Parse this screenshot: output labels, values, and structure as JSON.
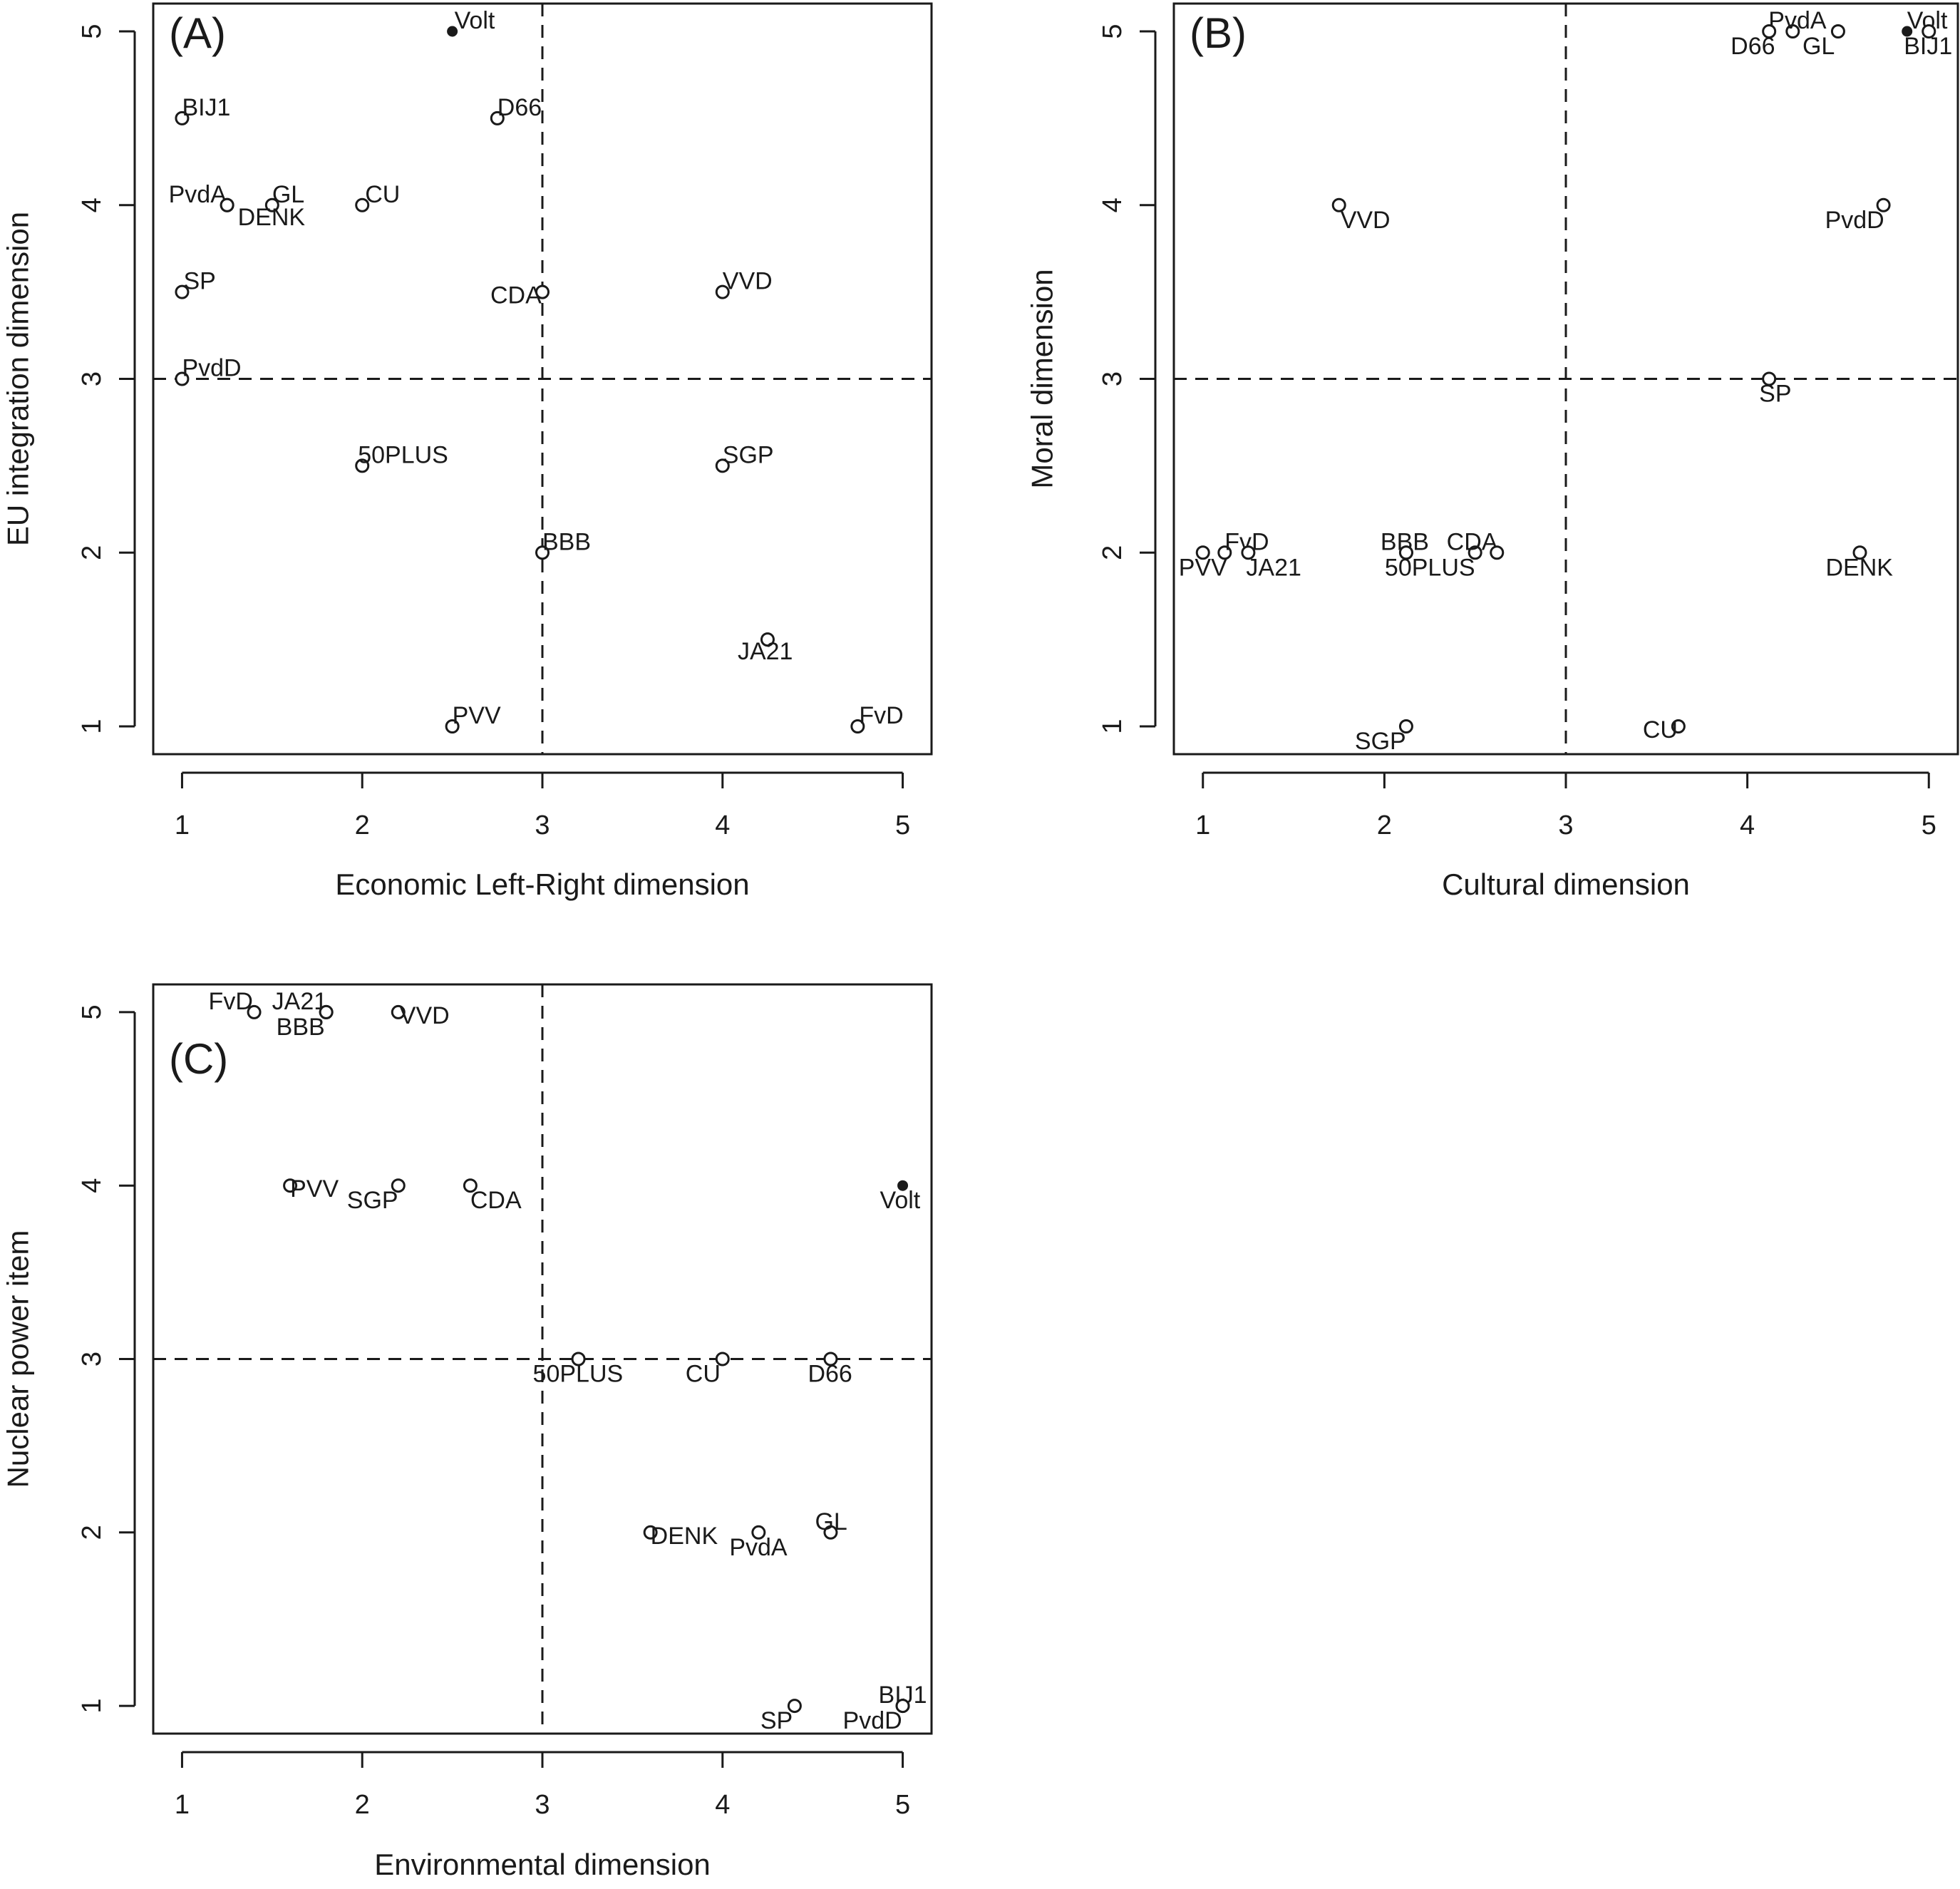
{
  "chart_data": [
    {
      "type": "scatter",
      "panel_label": "(A)",
      "xlabel": "Economic Left-Right dimension",
      "ylabel": "EU integration dimension",
      "xlim": [
        1,
        5
      ],
      "ylim": [
        1,
        5
      ],
      "x_ticks": [
        "1",
        "2",
        "3",
        "4",
        "5"
      ],
      "y_ticks": [
        "1",
        "2",
        "3",
        "4",
        "5"
      ],
      "reference_lines": {
        "x": 3,
        "y": 3
      },
      "grid": false,
      "points": [
        {
          "label": "Volt",
          "x": 2.5,
          "y": 5,
          "filled": true
        },
        {
          "label": "BIJ1",
          "x": 1,
          "y": 4.5,
          "filled": false
        },
        {
          "label": "D66",
          "x": 2.75,
          "y": 4.5,
          "filled": false
        },
        {
          "label": "PvdA",
          "x": 1.25,
          "y": 4,
          "filled": false
        },
        {
          "label": "GL",
          "x": 1.5,
          "y": 4,
          "filled": false
        },
        {
          "label": "DENK",
          "x": 1.25,
          "y": 4,
          "filled": false
        },
        {
          "label": "CU",
          "x": 2,
          "y": 4,
          "filled": false
        },
        {
          "label": "SP",
          "x": 1,
          "y": 3.5,
          "filled": false
        },
        {
          "label": "CDA",
          "x": 3,
          "y": 3.5,
          "filled": false
        },
        {
          "label": "VVD",
          "x": 4,
          "y": 3.5,
          "filled": false
        },
        {
          "label": "PvdD",
          "x": 1,
          "y": 3,
          "filled": false
        },
        {
          "label": "50PLUS",
          "x": 2,
          "y": 2.5,
          "filled": false
        },
        {
          "label": "SGP",
          "x": 4,
          "y": 2.5,
          "filled": false
        },
        {
          "label": "BBB",
          "x": 3,
          "y": 2,
          "filled": false
        },
        {
          "label": "JA21",
          "x": 4.25,
          "y": 1.5,
          "filled": false
        },
        {
          "label": "PVV",
          "x": 2.5,
          "y": 1,
          "filled": false
        },
        {
          "label": "FvD",
          "x": 4.75,
          "y": 1,
          "filled": false
        }
      ]
    },
    {
      "type": "scatter",
      "panel_label": "(B)",
      "xlabel": "Cultural dimension",
      "ylabel": "Moral dimension",
      "xlim": [
        1,
        5
      ],
      "ylim": [
        1,
        5
      ],
      "x_ticks": [
        "1",
        "2",
        "3",
        "4",
        "5"
      ],
      "y_ticks": [
        "1",
        "2",
        "3",
        "4",
        "5"
      ],
      "reference_lines": {
        "x": 3,
        "y": 3
      },
      "grid": false,
      "points": [
        {
          "label": "PvdA",
          "x": 4.25,
          "y": 5,
          "filled": false
        },
        {
          "label": "D66",
          "x": 4.12,
          "y": 5,
          "filled": false
        },
        {
          "label": "GL",
          "x": 4.5,
          "y": 5,
          "filled": false
        },
        {
          "label": "Volt",
          "x": 4.88,
          "y": 5,
          "filled": true
        },
        {
          "label": "BIJ1",
          "x": 5,
          "y": 5,
          "filled": false
        },
        {
          "label": "VVD",
          "x": 1.75,
          "y": 4,
          "filled": false
        },
        {
          "label": "PvdD",
          "x": 4.75,
          "y": 4,
          "filled": false
        },
        {
          "label": "SP",
          "x": 4.12,
          "y": 3,
          "filled": false
        },
        {
          "label": "PVV",
          "x": 1,
          "y": 2,
          "filled": false
        },
        {
          "label": "FvD",
          "x": 1.12,
          "y": 2,
          "filled": false
        },
        {
          "label": "JA21",
          "x": 1.25,
          "y": 2,
          "filled": false
        },
        {
          "label": "BBB",
          "x": 2.12,
          "y": 2,
          "filled": false
        },
        {
          "label": "50PLUS",
          "x": 2.12,
          "y": 2,
          "filled": false
        },
        {
          "label": "CDA",
          "x": 2.5,
          "y": 2,
          "filled": false
        },
        {
          "label": "CDA",
          "x": 2.62,
          "y": 2,
          "filled": false,
          "hidden_label": true
        },
        {
          "label": "DENK",
          "x": 4.62,
          "y": 2,
          "filled": false
        },
        {
          "label": "SGP",
          "x": 2.12,
          "y": 1,
          "filled": false
        },
        {
          "label": "CU",
          "x": 3.62,
          "y": 1,
          "filled": false
        }
      ]
    },
    {
      "type": "scatter",
      "panel_label": "(C)",
      "xlabel": "Environmental dimension",
      "ylabel": "Nuclear power item",
      "xlim": [
        1,
        5
      ],
      "ylim": [
        1,
        5
      ],
      "x_ticks": [
        "1",
        "2",
        "3",
        "4",
        "5"
      ],
      "y_ticks": [
        "1",
        "2",
        "3",
        "4",
        "5"
      ],
      "reference_lines": {
        "x": 3,
        "y": 3
      },
      "grid": false,
      "points": [
        {
          "label": "FvD",
          "x": 1.4,
          "y": 5,
          "filled": false
        },
        {
          "label": "JA21",
          "x": 1.8,
          "y": 5,
          "filled": false
        },
        {
          "label": "BBB",
          "x": 1.8,
          "y": 5,
          "filled": false
        },
        {
          "label": "VVD",
          "x": 2.2,
          "y": 5,
          "filled": false
        },
        {
          "label": "PVV",
          "x": 1.6,
          "y": 4,
          "filled": false
        },
        {
          "label": "SGP",
          "x": 2.2,
          "y": 4,
          "filled": false
        },
        {
          "label": "CDA",
          "x": 2.6,
          "y": 4,
          "filled": false
        },
        {
          "label": "Volt",
          "x": 5,
          "y": 4,
          "filled": true
        },
        {
          "label": "50PLUS",
          "x": 3.2,
          "y": 3,
          "filled": false
        },
        {
          "label": "CU",
          "x": 4,
          "y": 3,
          "filled": false
        },
        {
          "label": "D66",
          "x": 4.6,
          "y": 3,
          "filled": false
        },
        {
          "label": "DENK",
          "x": 3.6,
          "y": 2,
          "filled": false
        },
        {
          "label": "PvdA",
          "x": 4.2,
          "y": 2,
          "filled": false
        },
        {
          "label": "GL",
          "x": 4.6,
          "y": 2,
          "filled": false
        },
        {
          "label": "SP",
          "x": 4.4,
          "y": 1,
          "filled": false
        },
        {
          "label": "BIJ1",
          "x": 5,
          "y": 1,
          "filled": false
        },
        {
          "label": "PvdD",
          "x": 5,
          "y": 1,
          "filled": false
        }
      ]
    }
  ]
}
